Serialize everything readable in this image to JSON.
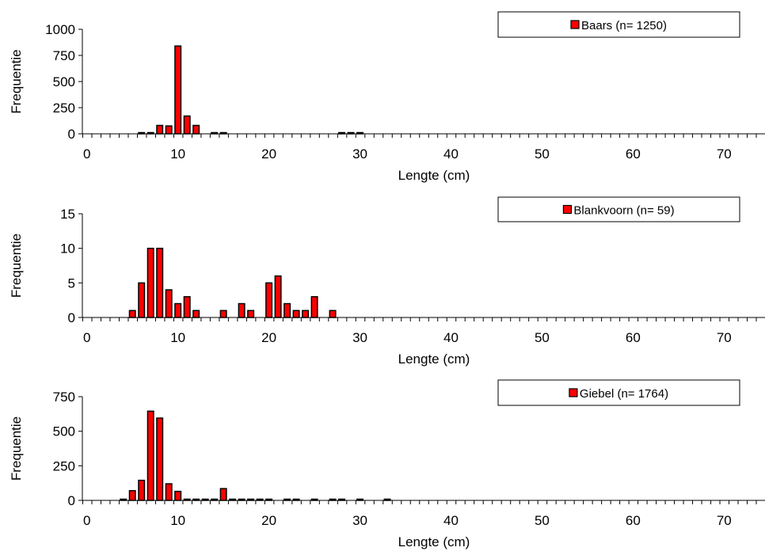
{
  "chart_data": [
    {
      "type": "bar",
      "legend": "Baars (n= 1250)",
      "xlabel": "Lengte (cm)",
      "ylabel": "Frequentie",
      "xlim": [
        0,
        75
      ],
      "ylim": [
        0,
        1000
      ],
      "xticks": [
        0,
        10,
        20,
        30,
        40,
        50,
        60,
        70
      ],
      "yticks": [
        0,
        250,
        500,
        750,
        1000
      ],
      "color": "#ff0000",
      "x": [
        6,
        7,
        8,
        9,
        10,
        11,
        12,
        14,
        15,
        28,
        29,
        30
      ],
      "values": [
        2,
        2,
        80,
        75,
        840,
        170,
        80,
        2,
        2,
        2,
        2,
        2
      ]
    },
    {
      "type": "bar",
      "legend": "Blankvoorn (n= 59)",
      "xlabel": "Lengte (cm)",
      "ylabel": "Frequentie",
      "xlim": [
        0,
        75
      ],
      "ylim": [
        0,
        15
      ],
      "xticks": [
        0,
        10,
        20,
        30,
        40,
        50,
        60,
        70
      ],
      "yticks": [
        0,
        5,
        10,
        15
      ],
      "color": "#ff0000",
      "x": [
        5,
        6,
        7,
        8,
        9,
        10,
        11,
        12,
        15,
        17,
        18,
        20,
        21,
        22,
        23,
        24,
        25,
        27
      ],
      "values": [
        1,
        5,
        10,
        10,
        4,
        2,
        3,
        1,
        1,
        2,
        1,
        5,
        6,
        2,
        1,
        1,
        3,
        1
      ]
    },
    {
      "type": "bar",
      "legend": "Giebel (n= 1764)",
      "xlabel": "Lengte (cm)",
      "ylabel": "Frequentie",
      "xlim": [
        0,
        75
      ],
      "ylim": [
        0,
        750
      ],
      "xticks": [
        0,
        10,
        20,
        30,
        40,
        50,
        60,
        70
      ],
      "yticks": [
        0,
        250,
        500,
        750
      ],
      "color": "#ff0000",
      "x": [
        4,
        5,
        6,
        7,
        8,
        9,
        10,
        11,
        12,
        13,
        14,
        15,
        16,
        17,
        18,
        19,
        20,
        22,
        23,
        25,
        27,
        28,
        30,
        33
      ],
      "values": [
        5,
        70,
        145,
        645,
        595,
        120,
        65,
        8,
        5,
        3,
        8,
        85,
        8,
        8,
        5,
        4,
        3,
        3,
        3,
        3,
        3,
        3,
        3,
        3
      ]
    }
  ]
}
